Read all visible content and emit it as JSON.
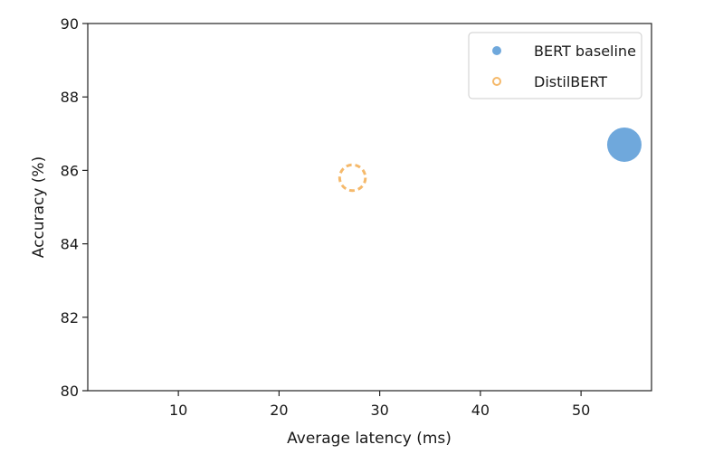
{
  "chart_data": {
    "type": "scatter",
    "title": "",
    "xlabel": "Average latency (ms)",
    "ylabel": "Accuracy (%)",
    "xlim": [
      1,
      57
    ],
    "ylim": [
      80,
      90
    ],
    "xticks": [
      10,
      20,
      30,
      40,
      50
    ],
    "yticks": [
      80,
      82,
      84,
      86,
      88,
      90
    ],
    "grid": false,
    "legend_position": "top-right",
    "series": [
      {
        "name": "BERT baseline",
        "x": 54.3,
        "y": 86.7,
        "relative_size": 1.0,
        "style": "filled",
        "color": "#6fa8dc"
      },
      {
        "name": "DistilBERT",
        "x": 27.3,
        "y": 85.8,
        "relative_size": 0.75,
        "style": "dashed-outline",
        "color": "#f5b96b"
      }
    ]
  }
}
